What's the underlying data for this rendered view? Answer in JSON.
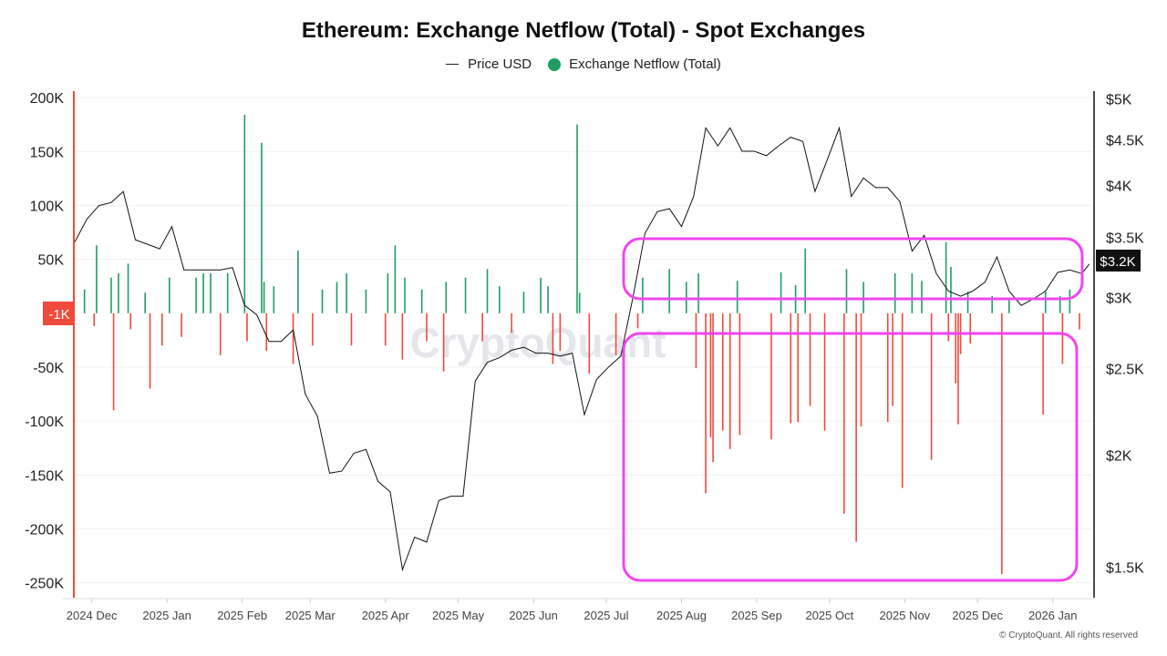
{
  "chart_data": {
    "type": "bar+line",
    "title": "Ethereum: Exchange Netflow (Total) - Spot Exchanges",
    "legend": {
      "placement": "top",
      "entries": [
        "Price USD",
        "Exchange Netflow (Total)"
      ]
    },
    "grid": true,
    "xlim": [
      "2024-11-24",
      "2026-01-18"
    ],
    "x_ticks": [
      {
        "date": "2024-12-01",
        "label": "2024 Dec"
      },
      {
        "date": "2025-01-01",
        "label": "2025 Jan"
      },
      {
        "date": "2025-02-01",
        "label": "2025 Feb"
      },
      {
        "date": "2025-03-01",
        "label": "2025 Mar"
      },
      {
        "date": "2025-04-01",
        "label": "2025 Apr"
      },
      {
        "date": "2025-05-01",
        "label": "2025 May"
      },
      {
        "date": "2025-06-01",
        "label": "2025 Jun"
      },
      {
        "date": "2025-07-01",
        "label": "2025 Jul"
      },
      {
        "date": "2025-08-01",
        "label": "2025 Aug"
      },
      {
        "date": "2025-09-01",
        "label": "2025 Sep"
      },
      {
        "date": "2025-10-01",
        "label": "2025 Oct"
      },
      {
        "date": "2025-11-01",
        "label": "2025 Nov"
      },
      {
        "date": "2025-12-01",
        "label": "2025 Dec"
      },
      {
        "date": "2026-01-01",
        "label": "2026 Jan"
      }
    ],
    "y_left": {
      "ylim": [
        -263000,
        206000
      ],
      "ticks": [
        {
          "value": 200000,
          "label": "200K"
        },
        {
          "value": 150000,
          "label": "150K"
        },
        {
          "value": 100000,
          "label": "100K"
        },
        {
          "value": 50000,
          "label": "50K"
        },
        {
          "value": -50000,
          "label": "-50K"
        },
        {
          "value": -100000,
          "label": "-100K"
        },
        {
          "value": -150000,
          "label": "-150K"
        },
        {
          "value": -200000,
          "label": "-200K"
        },
        {
          "value": -250000,
          "label": "-250K"
        }
      ],
      "current_label": "-1K"
    },
    "y_right": {
      "scale": "log",
      "ylim": [
        1390,
        5100
      ],
      "ticks": [
        {
          "value": 5000,
          "label": "$5K"
        },
        {
          "value": 4500,
          "label": "$4.5K"
        },
        {
          "value": 4000,
          "label": "$4K"
        },
        {
          "value": 3500,
          "label": "$3.5K"
        },
        {
          "value": 3000,
          "label": "$3K"
        },
        {
          "value": 2500,
          "label": "$2.5K"
        },
        {
          "value": 2000,
          "label": "$2K"
        },
        {
          "value": 1500,
          "label": "$1.5K"
        }
      ],
      "current_label": "$3.2K"
    },
    "colors": {
      "price": "#111111",
      "inflow": "#1f9d63",
      "outflow": "#ef4a3c",
      "highlight": "#f046f0",
      "left_axis": "#ef4a3c"
    },
    "series": [
      {
        "name": "Price USD",
        "type": "line",
        "axis": "right",
        "points": [
          [
            "2024-11-24",
            3460
          ],
          [
            "2024-11-29",
            3670
          ],
          [
            "2024-12-04",
            3800
          ],
          [
            "2024-12-09",
            3830
          ],
          [
            "2024-12-14",
            3940
          ],
          [
            "2024-12-19",
            3480
          ],
          [
            "2024-12-24",
            3440
          ],
          [
            "2024-12-29",
            3400
          ],
          [
            "2025-01-03",
            3600
          ],
          [
            "2025-01-08",
            3220
          ],
          [
            "2025-01-13",
            3220
          ],
          [
            "2025-01-18",
            3220
          ],
          [
            "2025-01-23",
            3220
          ],
          [
            "2025-01-28",
            3240
          ],
          [
            "2025-02-02",
            2940
          ],
          [
            "2025-02-07",
            2870
          ],
          [
            "2025-02-12",
            2680
          ],
          [
            "2025-02-17",
            2680
          ],
          [
            "2025-02-22",
            2760
          ],
          [
            "2025-02-27",
            2340
          ],
          [
            "2025-03-04",
            2210
          ],
          [
            "2025-03-09",
            1910
          ],
          [
            "2025-03-14",
            1920
          ],
          [
            "2025-03-19",
            2010
          ],
          [
            "2025-03-24",
            2030
          ],
          [
            "2025-03-29",
            1870
          ],
          [
            "2025-04-03",
            1820
          ],
          [
            "2025-04-08",
            1490
          ],
          [
            "2025-04-13",
            1620
          ],
          [
            "2025-04-18",
            1600
          ],
          [
            "2025-04-23",
            1780
          ],
          [
            "2025-04-28",
            1800
          ],
          [
            "2025-05-03",
            1800
          ],
          [
            "2025-05-08",
            2420
          ],
          [
            "2025-05-13",
            2540
          ],
          [
            "2025-05-18",
            2570
          ],
          [
            "2025-05-23",
            2620
          ],
          [
            "2025-05-28",
            2640
          ],
          [
            "2025-06-02",
            2600
          ],
          [
            "2025-06-07",
            2600
          ],
          [
            "2025-06-12",
            2580
          ],
          [
            "2025-06-17",
            2600
          ],
          [
            "2025-06-22",
            2220
          ],
          [
            "2025-06-27",
            2430
          ],
          [
            "2025-07-02",
            2510
          ],
          [
            "2025-07-07",
            2580
          ],
          [
            "2025-07-12",
            3000
          ],
          [
            "2025-07-17",
            3540
          ],
          [
            "2025-07-22",
            3740
          ],
          [
            "2025-07-27",
            3770
          ],
          [
            "2025-08-01",
            3600
          ],
          [
            "2025-08-06",
            3890
          ],
          [
            "2025-08-11",
            4640
          ],
          [
            "2025-08-16",
            4430
          ],
          [
            "2025-08-21",
            4640
          ],
          [
            "2025-08-26",
            4370
          ],
          [
            "2025-08-31",
            4370
          ],
          [
            "2025-09-05",
            4320
          ],
          [
            "2025-09-10",
            4430
          ],
          [
            "2025-09-15",
            4530
          ],
          [
            "2025-09-20",
            4480
          ],
          [
            "2025-09-25",
            3940
          ],
          [
            "2025-09-30",
            4270
          ],
          [
            "2025-10-05",
            4640
          ],
          [
            "2025-10-10",
            3890
          ],
          [
            "2025-10-15",
            4080
          ],
          [
            "2025-10-20",
            3980
          ],
          [
            "2025-10-25",
            3980
          ],
          [
            "2025-10-30",
            3840
          ],
          [
            "2025-11-04",
            3380
          ],
          [
            "2025-11-09",
            3520
          ],
          [
            "2025-11-14",
            3190
          ],
          [
            "2025-11-19",
            3050
          ],
          [
            "2025-11-24",
            3010
          ],
          [
            "2025-11-29",
            3050
          ],
          [
            "2025-12-04",
            3120
          ],
          [
            "2025-12-09",
            3330
          ],
          [
            "2025-12-14",
            3050
          ],
          [
            "2025-12-19",
            2940
          ],
          [
            "2025-12-24",
            2990
          ],
          [
            "2025-12-29",
            3050
          ],
          [
            "2026-01-03",
            3200
          ],
          [
            "2026-01-08",
            3220
          ],
          [
            "2026-01-13",
            3190
          ],
          [
            "2026-01-16",
            3270
          ]
        ]
      },
      {
        "name": "Exchange Netflow (Total)",
        "type": "bar",
        "axis": "left",
        "points": [
          [
            "2024-11-28",
            22000
          ],
          [
            "2024-12-02",
            -12000
          ],
          [
            "2024-12-03",
            63000
          ],
          [
            "2024-12-09",
            33000
          ],
          [
            "2024-12-10",
            -90000
          ],
          [
            "2024-12-12",
            37000
          ],
          [
            "2024-12-16",
            46000
          ],
          [
            "2024-12-17",
            -15000
          ],
          [
            "2024-12-23",
            19000
          ],
          [
            "2024-12-25",
            -70000
          ],
          [
            "2024-12-30",
            -30000
          ],
          [
            "2025-01-02",
            33000
          ],
          [
            "2025-01-07",
            -22000
          ],
          [
            "2025-01-13",
            33000
          ],
          [
            "2025-01-16",
            37000
          ],
          [
            "2025-01-19",
            37000
          ],
          [
            "2025-01-23",
            -39000
          ],
          [
            "2025-01-26",
            37000
          ],
          [
            "2025-02-02",
            184000
          ],
          [
            "2025-02-03",
            -26000
          ],
          [
            "2025-02-09",
            158000
          ],
          [
            "2025-02-10",
            29000
          ],
          [
            "2025-02-11",
            -35000
          ],
          [
            "2025-02-14",
            25000
          ],
          [
            "2025-02-22",
            -47000
          ],
          [
            "2025-02-24",
            58000
          ],
          [
            "2025-03-02",
            -30000
          ],
          [
            "2025-03-06",
            22000
          ],
          [
            "2025-03-12",
            29000
          ],
          [
            "2025-03-16",
            37000
          ],
          [
            "2025-03-18",
            -30000
          ],
          [
            "2025-03-24",
            22000
          ],
          [
            "2025-04-01",
            -30000
          ],
          [
            "2025-04-02",
            37000
          ],
          [
            "2025-04-05",
            63000
          ],
          [
            "2025-04-08",
            -43000
          ],
          [
            "2025-04-09",
            33000
          ],
          [
            "2025-04-16",
            22000
          ],
          [
            "2025-04-18",
            -26000
          ],
          [
            "2025-04-25",
            -54000
          ],
          [
            "2025-04-26",
            29000
          ],
          [
            "2025-05-04",
            33000
          ],
          [
            "2025-05-11",
            -26000
          ],
          [
            "2025-05-13",
            41000
          ],
          [
            "2025-05-18",
            25000
          ],
          [
            "2025-05-23",
            -18000
          ],
          [
            "2025-05-28",
            20000
          ],
          [
            "2025-06-04",
            33000
          ],
          [
            "2025-06-07",
            25000
          ],
          [
            "2025-06-09",
            -47000
          ],
          [
            "2025-06-12",
            -35000
          ],
          [
            "2025-06-19",
            175000
          ],
          [
            "2025-06-20",
            19000
          ],
          [
            "2025-06-24",
            -56000
          ],
          [
            "2025-07-05",
            -39000
          ],
          [
            "2025-07-14",
            -14000
          ],
          [
            "2025-07-16",
            33000
          ],
          [
            "2025-07-27",
            41000
          ],
          [
            "2025-08-03",
            29000
          ],
          [
            "2025-08-07",
            -51000
          ],
          [
            "2025-08-08",
            37000
          ],
          [
            "2025-08-11",
            -167000
          ],
          [
            "2025-08-13",
            -115000
          ],
          [
            "2025-08-14",
            -138000
          ],
          [
            "2025-08-18",
            -109000
          ],
          [
            "2025-08-21",
            -126000
          ],
          [
            "2025-08-24",
            30000
          ],
          [
            "2025-08-25",
            -113000
          ],
          [
            "2025-09-07",
            -117000
          ],
          [
            "2025-09-11",
            38000
          ],
          [
            "2025-09-15",
            -102000
          ],
          [
            "2025-09-17",
            26000
          ],
          [
            "2025-09-18",
            -101000
          ],
          [
            "2025-09-21",
            60000
          ],
          [
            "2025-09-23",
            -86000
          ],
          [
            "2025-09-29",
            -109000
          ],
          [
            "2025-10-07",
            -186000
          ],
          [
            "2025-10-08",
            41000
          ],
          [
            "2025-10-12",
            -212000
          ],
          [
            "2025-10-14",
            -105000
          ],
          [
            "2025-10-15",
            29000
          ],
          [
            "2025-10-25",
            -101000
          ],
          [
            "2025-10-27",
            -86000
          ],
          [
            "2025-10-28",
            37000
          ],
          [
            "2025-10-31",
            -162000
          ],
          [
            "2025-11-04",
            37000
          ],
          [
            "2025-11-08",
            30000
          ],
          [
            "2025-11-12",
            -136000
          ],
          [
            "2025-11-18",
            66000
          ],
          [
            "2025-11-19",
            -26000
          ],
          [
            "2025-11-20",
            43000
          ],
          [
            "2025-11-22",
            -65000
          ],
          [
            "2025-11-23",
            -103000
          ],
          [
            "2025-11-24",
            -38000
          ],
          [
            "2025-11-27",
            20000
          ],
          [
            "2025-11-28",
            -28000
          ],
          [
            "2025-12-07",
            16000
          ],
          [
            "2025-12-11",
            -242000
          ],
          [
            "2025-12-14",
            12000
          ],
          [
            "2025-12-28",
            -94000
          ],
          [
            "2025-12-29",
            20000
          ],
          [
            "2026-01-04",
            16000
          ],
          [
            "2026-01-05",
            -47000
          ],
          [
            "2026-01-08",
            22000
          ],
          [
            "2026-01-12",
            -15000
          ]
        ]
      }
    ]
  },
  "watermark": "CryptoQuant",
  "copyright": "© CryptoQuant. All rights reserved"
}
